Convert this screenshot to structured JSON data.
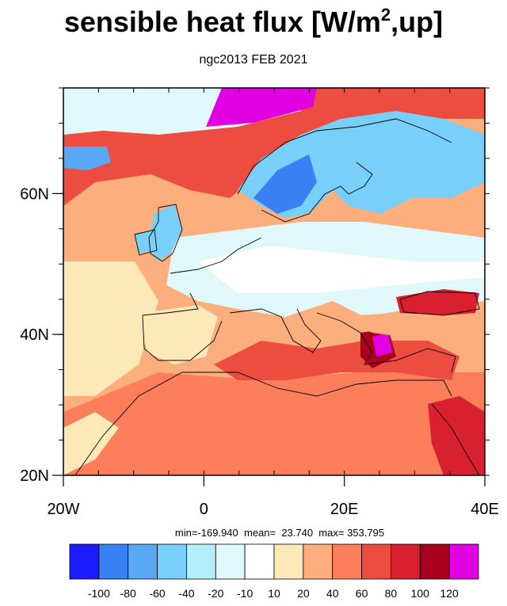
{
  "title": {
    "main": "sensible heat flux [W/m",
    "sup": "2",
    "tail": ",up]"
  },
  "subtitle": "ngc2013 FEB 2021",
  "map": {
    "lon_range": [
      -20,
      40
    ],
    "lat_range": [
      20,
      75
    ],
    "x_ticks": [
      {
        "lon": -20,
        "label": "20W"
      },
      {
        "lon": 0,
        "label": "0"
      },
      {
        "lon": 20,
        "label": "20E"
      },
      {
        "lon": 40,
        "label": "40E"
      }
    ],
    "y_ticks": [
      {
        "lat": 20,
        "label": "20N"
      },
      {
        "lat": 40,
        "label": "40N"
      },
      {
        "lat": 60,
        "label": "60N"
      }
    ]
  },
  "stats": {
    "text": "min=-169.940  mean=  23.740  max= 353.795"
  },
  "colorbar": {
    "colors": [
      "#1c1cff",
      "#3a80f5",
      "#5aa8f5",
      "#78d0fa",
      "#b3eefa",
      "#e0f8fa",
      "#ffffff",
      "#fde8b7",
      "#fcae7c",
      "#fc7e5a",
      "#ed4c40",
      "#d8202e",
      "#a8001c",
      "#e100e1"
    ],
    "labels": [
      "-100",
      "-80",
      "-60",
      "-40",
      "-20",
      "-10",
      "10",
      "20",
      "40",
      "60",
      "80",
      "100",
      "120"
    ]
  }
}
